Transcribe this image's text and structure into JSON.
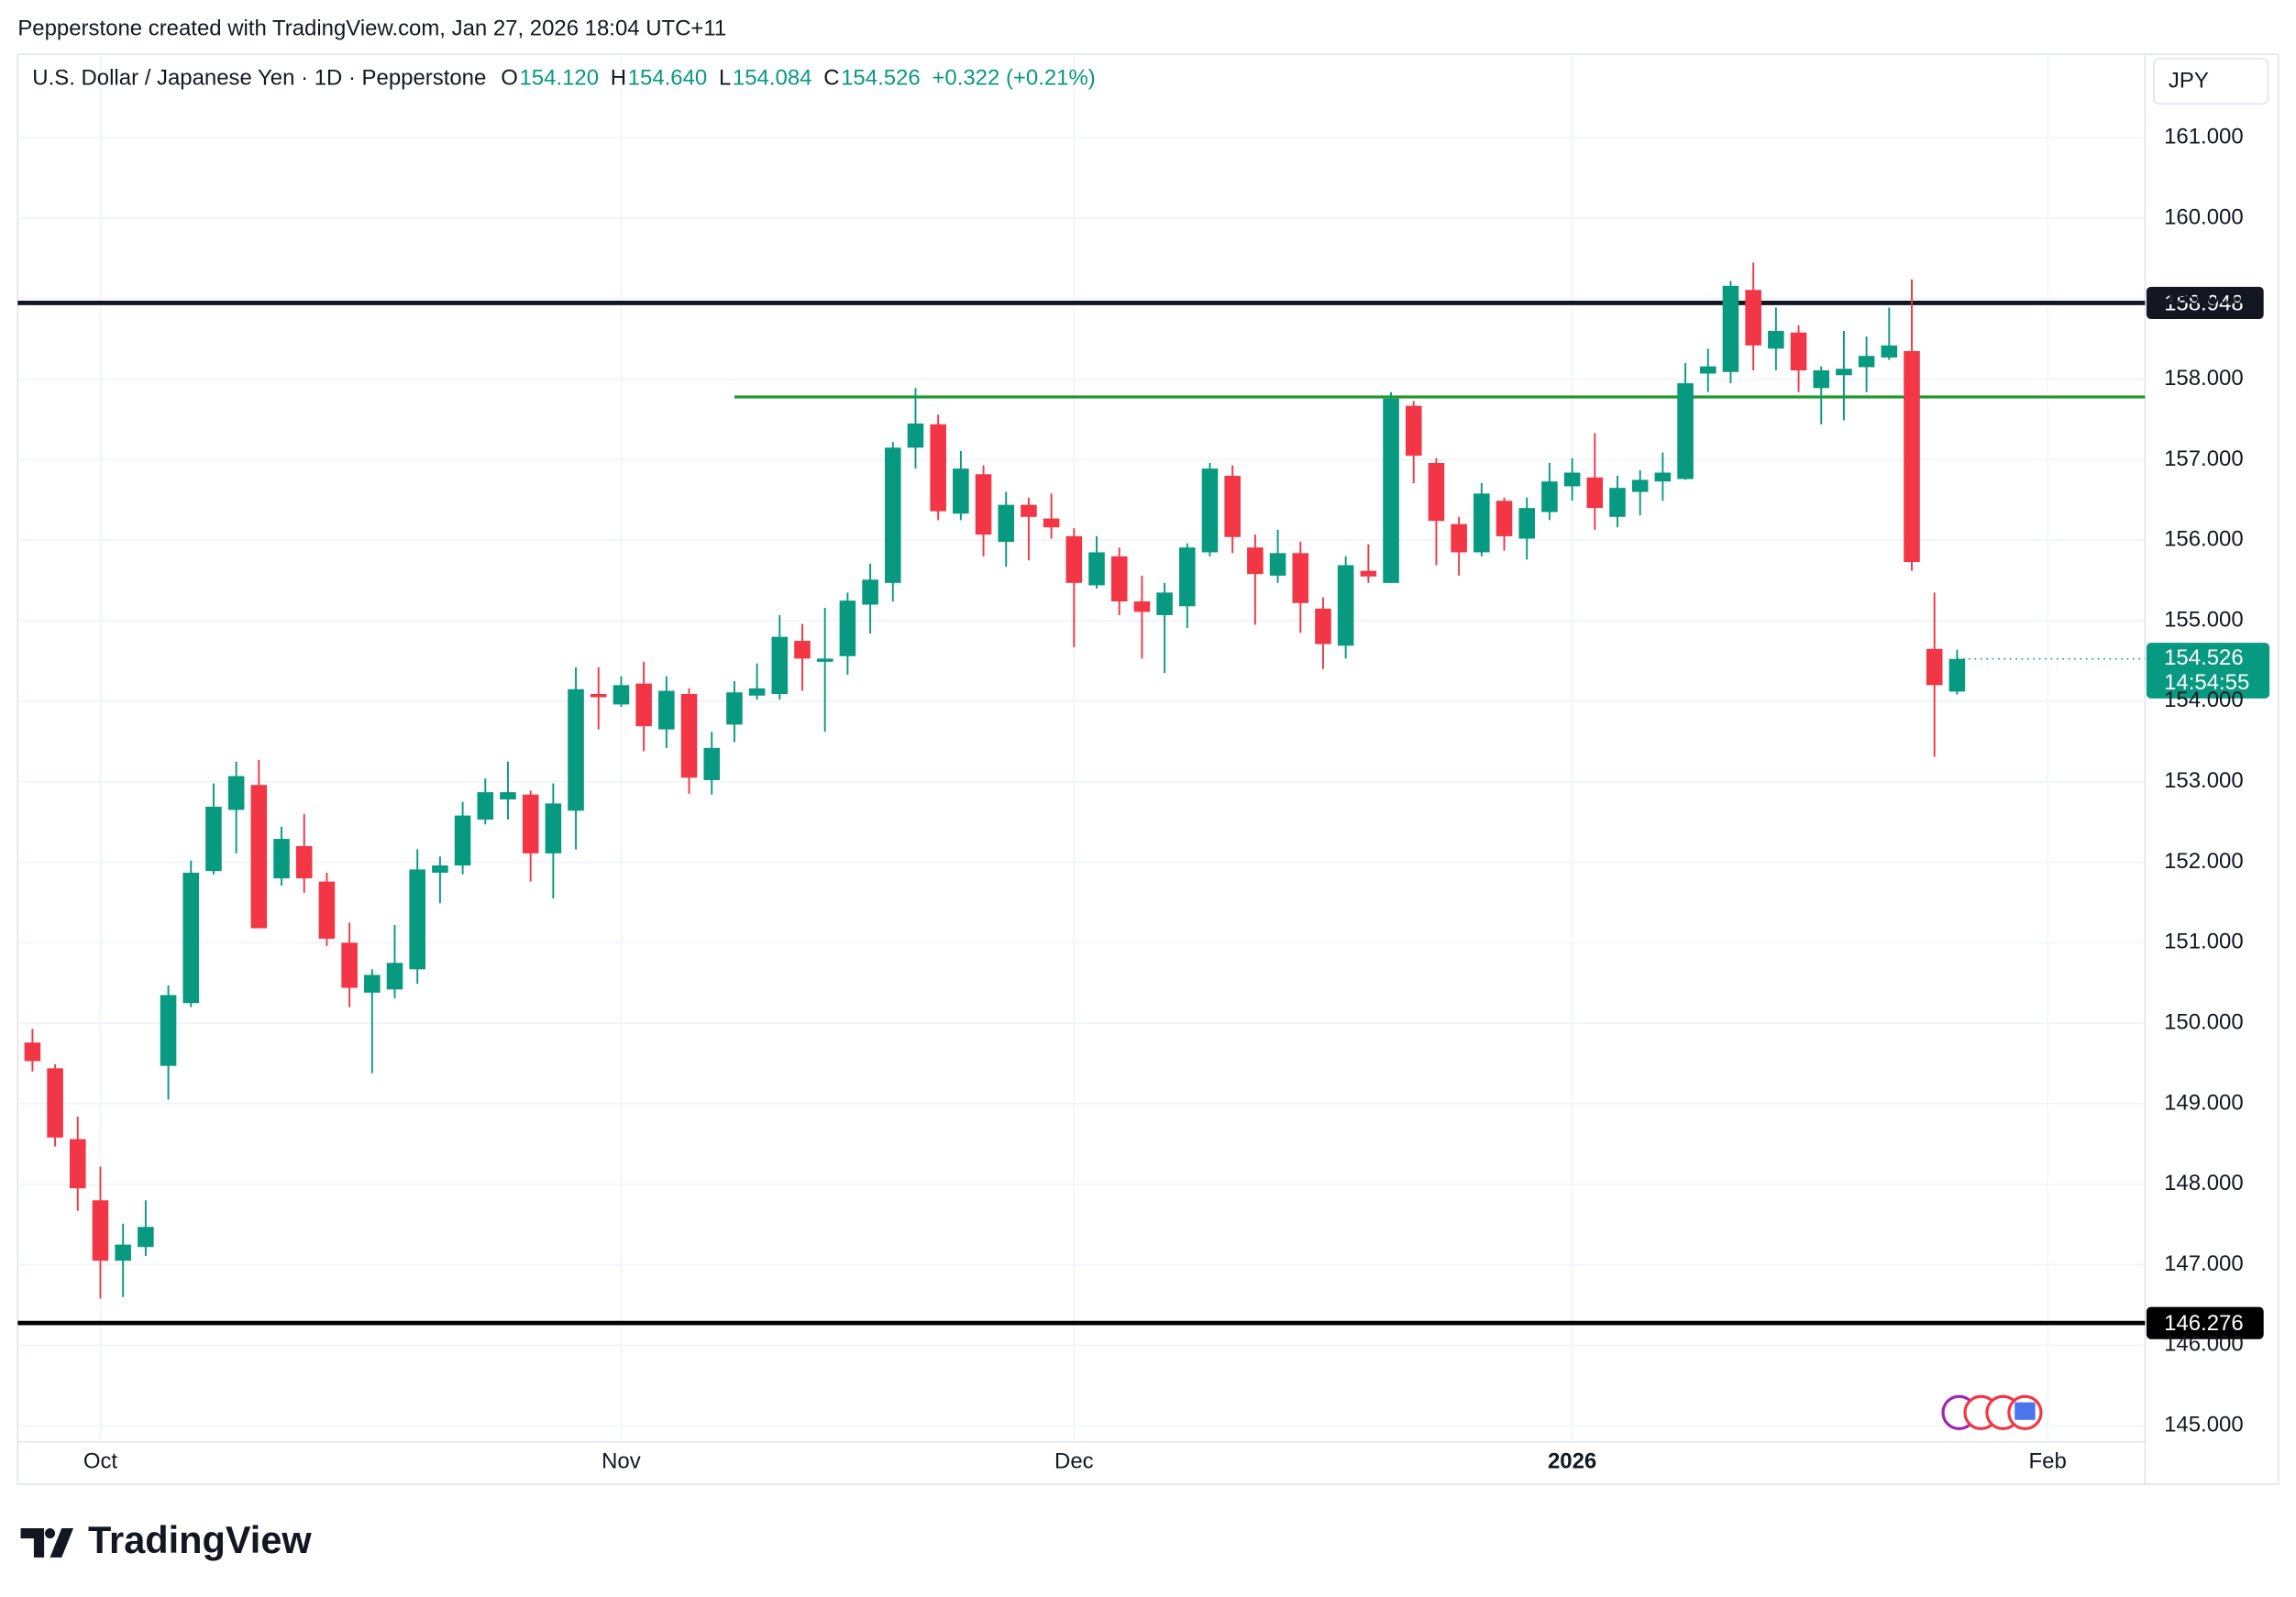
{
  "chart_data": {
    "type": "candlestick",
    "credit": "Pepperstone created with TradingView.com, Jan 27, 2026 18:04 UTC+11",
    "symbol": "U.S. Dollar / Japanese Yen · 1D · Pepperstone",
    "ohlc_legend": [
      {
        "label": "O",
        "value": "154.120"
      },
      {
        "label": "H",
        "value": "154.640"
      },
      {
        "label": "L",
        "value": "154.084"
      },
      {
        "label": "C",
        "value": "154.526"
      }
    ],
    "change": "+0.322 (+0.21%)",
    "currency": "JPY",
    "up_color": "#089981",
    "down_color": "#f23645",
    "x": [
      0,
      1,
      2,
      3,
      4,
      5,
      6,
      7,
      8,
      9,
      10,
      11,
      12,
      13,
      14,
      15,
      16,
      17,
      18,
      19,
      20,
      21,
      22,
      23,
      24,
      25,
      26,
      27,
      28,
      29,
      30,
      31,
      32,
      33,
      34,
      35,
      36,
      37,
      38,
      39,
      40,
      41,
      42,
      43,
      44,
      45,
      46,
      47,
      48,
      49,
      50,
      51,
      52,
      53,
      54,
      55,
      56,
      57,
      58,
      59,
      60,
      61,
      62,
      63,
      64,
      65,
      66,
      67,
      68,
      69,
      70,
      71,
      72,
      73,
      74,
      75,
      76,
      77,
      78,
      79,
      80,
      81,
      82,
      83,
      84,
      85
    ],
    "open": [
      149.76,
      149.44,
      148.56,
      147.8,
      147.05,
      147.22,
      149.47,
      150.25,
      151.89,
      152.65,
      152.96,
      151.8,
      152.2,
      151.76,
      151.0,
      150.38,
      150.42,
      150.67,
      151.87,
      151.96,
      152.53,
      152.78,
      152.84,
      152.11,
      152.64,
      154.09,
      153.96,
      154.22,
      153.65,
      154.09,
      153.02,
      153.71,
      154.07,
      154.09,
      154.75,
      154.49,
      154.56,
      155.2,
      155.47,
      157.15,
      157.44,
      156.33,
      156.82,
      155.98,
      156.44,
      156.27,
      156.05,
      155.44,
      155.8,
      155.24,
      155.07,
      155.18,
      155.85,
      156.8,
      155.91,
      155.56,
      155.84,
      155.15,
      154.69,
      155.62,
      155.47,
      157.67,
      156.96,
      156.2,
      155.85,
      156.49,
      156.02,
      156.35,
      156.67,
      156.78,
      156.29,
      156.6,
      156.73,
      156.76,
      158.07,
      158.09,
      159.11,
      158.38,
      158.58,
      157.89,
      158.05,
      158.15,
      158.27,
      158.35,
      154.65,
      154.12
    ],
    "high": [
      149.93,
      149.49,
      148.84,
      148.22,
      147.51,
      147.8,
      150.47,
      152.02,
      152.98,
      153.25,
      153.27,
      152.44,
      152.6,
      151.87,
      151.25,
      150.67,
      151.22,
      152.16,
      152.07,
      152.75,
      153.04,
      153.25,
      152.89,
      152.98,
      154.42,
      154.42,
      154.31,
      154.49,
      154.31,
      154.16,
      153.62,
      154.25,
      154.47,
      155.07,
      154.96,
      155.16,
      155.35,
      155.71,
      157.22,
      157.89,
      157.56,
      157.11,
      156.93,
      156.6,
      156.53,
      156.58,
      156.15,
      156.05,
      155.91,
      155.56,
      155.47,
      155.96,
      156.96,
      156.93,
      156.07,
      156.13,
      155.98,
      155.29,
      155.8,
      155.95,
      157.84,
      157.73,
      157.02,
      156.29,
      156.71,
      156.53,
      156.53,
      156.96,
      157.02,
      157.33,
      156.8,
      156.87,
      157.09,
      158.2,
      158.38,
      159.22,
      159.45,
      158.89,
      158.67,
      158.16,
      158.6,
      158.53,
      158.89,
      159.24,
      155.35,
      154.64
    ],
    "low": [
      149.4,
      148.47,
      147.67,
      146.58,
      146.6,
      147.11,
      149.05,
      150.2,
      151.85,
      152.11,
      151.18,
      151.71,
      151.62,
      150.96,
      150.2,
      149.38,
      150.31,
      150.49,
      151.49,
      151.85,
      152.47,
      152.53,
      151.76,
      151.55,
      152.16,
      153.65,
      153.93,
      153.38,
      153.42,
      152.85,
      152.84,
      153.49,
      154.02,
      154.02,
      154.13,
      153.62,
      154.33,
      154.84,
      155.24,
      156.89,
      156.25,
      156.25,
      155.8,
      155.67,
      155.75,
      156.02,
      154.67,
      155.4,
      155.07,
      154.53,
      154.35,
      154.91,
      155.8,
      155.84,
      154.95,
      155.47,
      154.85,
      154.4,
      154.53,
      155.47,
      155.47,
      156.71,
      155.69,
      155.56,
      155.8,
      155.87,
      155.76,
      156.25,
      156.49,
      156.13,
      156.16,
      156.31,
      156.49,
      156.75,
      157.84,
      157.95,
      158.11,
      158.11,
      157.84,
      157.44,
      157.49,
      157.84,
      158.24,
      155.62,
      153.31,
      154.084
    ],
    "close": [
      149.53,
      148.58,
      147.95,
      147.05,
      147.25,
      147.47,
      150.35,
      151.87,
      152.69,
      153.07,
      151.18,
      152.29,
      151.8,
      151.05,
      150.44,
      150.6,
      150.75,
      151.91,
      151.96,
      152.58,
      152.87,
      152.87,
      152.11,
      152.73,
      154.15,
      154.05,
      154.2,
      153.69,
      154.13,
      153.05,
      153.42,
      154.11,
      154.16,
      154.8,
      154.53,
      154.53,
      155.25,
      155.51,
      157.15,
      157.45,
      156.36,
      156.89,
      156.07,
      156.44,
      156.29,
      156.16,
      155.47,
      155.85,
      155.24,
      155.11,
      155.35,
      155.91,
      156.89,
      156.04,
      155.58,
      155.84,
      155.22,
      154.71,
      155.69,
      155.55,
      157.76,
      157.05,
      156.24,
      155.85,
      156.58,
      156.05,
      156.4,
      156.73,
      156.84,
      156.4,
      156.65,
      156.75,
      156.84,
      157.95,
      158.16,
      159.16,
      158.42,
      158.6,
      158.11,
      158.11,
      158.13,
      158.29,
      158.42,
      155.73,
      154.2,
      154.526
    ],
    "xlim": [
      -0.65,
      93.3
    ],
    "xticks": [
      {
        "value": 3,
        "label": "Oct"
      },
      {
        "value": 26,
        "label": "Nov"
      },
      {
        "value": 46,
        "label": "Dec"
      },
      {
        "value": 68,
        "label": "2026",
        "bold": true
      },
      {
        "value": 89,
        "label": "Feb"
      }
    ],
    "ylim": [
      144.8,
      162.02
    ],
    "yticks": [
      {
        "value": 145,
        "label": "145.000"
      },
      {
        "value": 146,
        "label": "146.000"
      },
      {
        "value": 147,
        "label": "147.000"
      },
      {
        "value": 148,
        "label": "148.000"
      },
      {
        "value": 149,
        "label": "149.000"
      },
      {
        "value": 150,
        "label": "150.000"
      },
      {
        "value": 151,
        "label": "151.000"
      },
      {
        "value": 152,
        "label": "152.000"
      },
      {
        "value": 153,
        "label": "153.000"
      },
      {
        "value": 154,
        "label": "154.000"
      },
      {
        "value": 155,
        "label": "155.000"
      },
      {
        "value": 156,
        "label": "156.000"
      },
      {
        "value": 157,
        "label": "157.000"
      },
      {
        "value": 158,
        "label": "158.000"
      },
      {
        "value": 159,
        "label": "159.000"
      },
      {
        "value": 160,
        "label": "160.000"
      },
      {
        "value": 161,
        "label": "161.000"
      }
    ],
    "grid": true,
    "levels": [
      {
        "value": 158.948,
        "label": "158.948",
        "color": "#131722"
      },
      {
        "value": 146.276,
        "label": "146.276",
        "color": "#000000"
      },
      {
        "value": 157.78,
        "color": "#1e9a2c",
        "from": 31
      }
    ],
    "last_price": {
      "value": 154.526,
      "label": "154.526",
      "countdown": "14:54:55",
      "color": "#089981"
    },
    "brand": "TradingView"
  }
}
